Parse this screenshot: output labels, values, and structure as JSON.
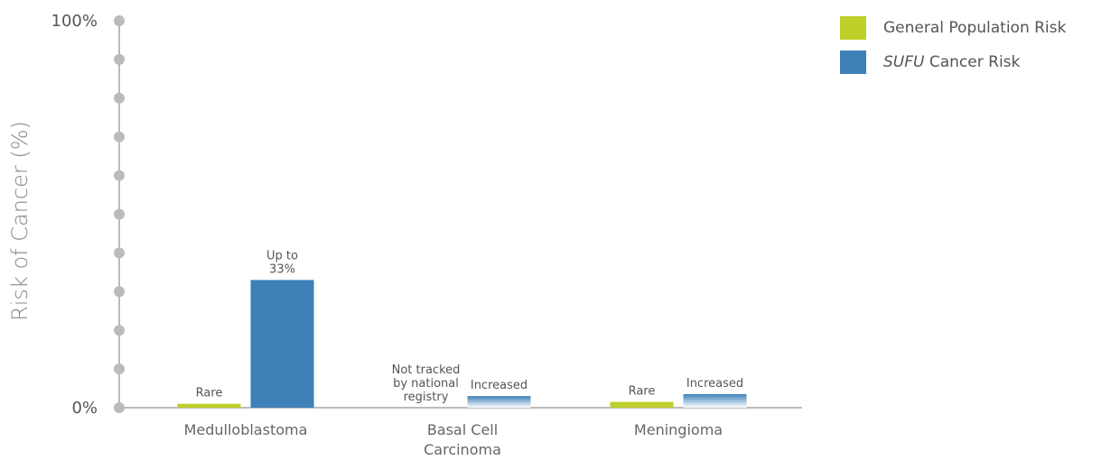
{
  "chart_data": {
    "type": "bar",
    "title": "",
    "xlabel": "",
    "ylabel": "Risk of Cancer (%)",
    "ylim": [
      0,
      100
    ],
    "y_tick_labels": [
      "0%",
      "100%"
    ],
    "categories": [
      "Medulloblastoma",
      "Basal Cell Carcinoma",
      "Meningioma"
    ],
    "category_label_lines": [
      [
        "Medulloblastoma"
      ],
      [
        "Basal Cell",
        "Carcinoma"
      ],
      [
        "Meningioma"
      ]
    ],
    "series": [
      {
        "name": "General Population Risk",
        "color": "#bfd02a",
        "values": [
          1,
          0,
          1.5
        ],
        "labels": [
          [
            "Rare"
          ],
          [
            "Not tracked",
            "by national",
            "registry"
          ],
          [
            "Rare"
          ]
        ]
      },
      {
        "name": "SUFU Cancer Risk",
        "name_parts": {
          "italic": "SUFU",
          "rest": " Cancer Risk"
        },
        "color": "#3e80b8",
        "values": [
          33,
          3,
          3.5
        ],
        "labels": [
          [
            "Up to",
            "33%"
          ],
          [
            "Increased"
          ],
          [
            "Increased"
          ]
        ],
        "gradient": [
          false,
          true,
          true
        ]
      }
    ],
    "legend_position": "top-right",
    "grid": false
  }
}
